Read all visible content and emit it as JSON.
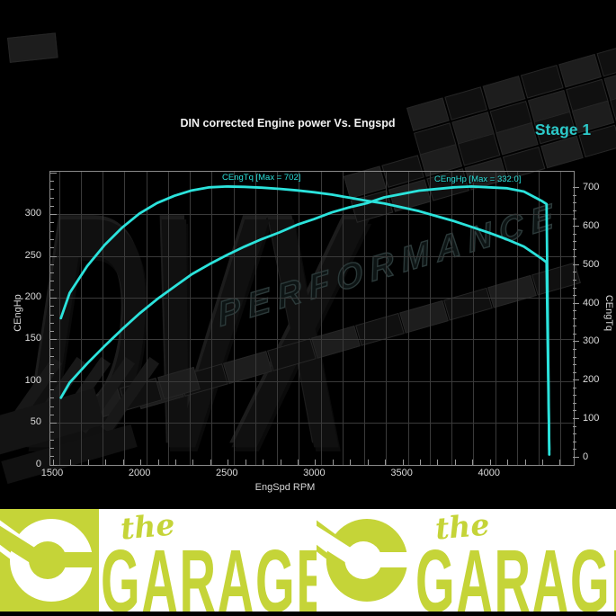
{
  "header": {
    "title": "DIN corrected Engine power Vs. Engspd",
    "stage": "Stage 1"
  },
  "watermark": {
    "big": "DVX",
    "word": "PERFORMANCE"
  },
  "chart_data": {
    "type": "line",
    "title": "DIN corrected Engine power Vs. Engspd",
    "xlabel": "EngSpd RPM",
    "ylabel_left": "CEngHp",
    "ylabel_right": "CEngTq",
    "x_ticks": [
      1500,
      2000,
      2500,
      3000,
      3500,
      4000
    ],
    "left_ticks": [
      0,
      50,
      100,
      150,
      200,
      250,
      300
    ],
    "right_ticks": [
      0,
      100,
      200,
      300,
      400,
      500,
      600,
      700
    ],
    "xlim": [
      1483,
      4500
    ],
    "ylim_left": [
      0,
      350
    ],
    "ylim_right": [
      0,
      745
    ],
    "grid": true,
    "legend_position": "inline-annotations",
    "rpm": [
      1550,
      1600,
      1700,
      1800,
      1900,
      2000,
      2100,
      2200,
      2300,
      2400,
      2500,
      2600,
      2700,
      2800,
      2900,
      3000,
      3100,
      3200,
      3300,
      3400,
      3500,
      3600,
      3700,
      3800,
      3900,
      4000,
      4100,
      4200,
      4300,
      4330,
      4336,
      4345
    ],
    "series": [
      {
        "name": "CEngHp",
        "axis": "left",
        "max": 332.0,
        "annotation": "CEngHp [Max = 332.0]",
        "values": [
          79,
          97,
          120,
          141,
          161,
          180,
          197,
          212,
          227,
          239,
          250,
          260,
          269,
          277,
          286,
          293,
          301,
          307,
          312,
          319,
          323,
          327,
          329,
          331,
          332,
          331,
          330,
          326,
          315,
          311,
          185,
          11
        ]
      },
      {
        "name": "CEngTq",
        "axis": "right",
        "max": 702,
        "annotation": "CEngTq [Max = 702]",
        "values": [
          360,
          425,
          495,
          550,
          595,
          632,
          659,
          678,
          692,
          700,
          702,
          701,
          699,
          696,
          692,
          687,
          681,
          673,
          665,
          658,
          648,
          638,
          625,
          612,
          597,
          582,
          565,
          546,
          515,
          505,
          300,
          18
        ]
      }
    ]
  },
  "footer": {
    "script": "the",
    "brand": "GARAGE"
  },
  "colors": {
    "curve": "#2be3dc",
    "stage_text": "#2cc9c9",
    "brand_lime": "#c5d438",
    "grid": "#3a3a3a",
    "background": "#000000"
  }
}
